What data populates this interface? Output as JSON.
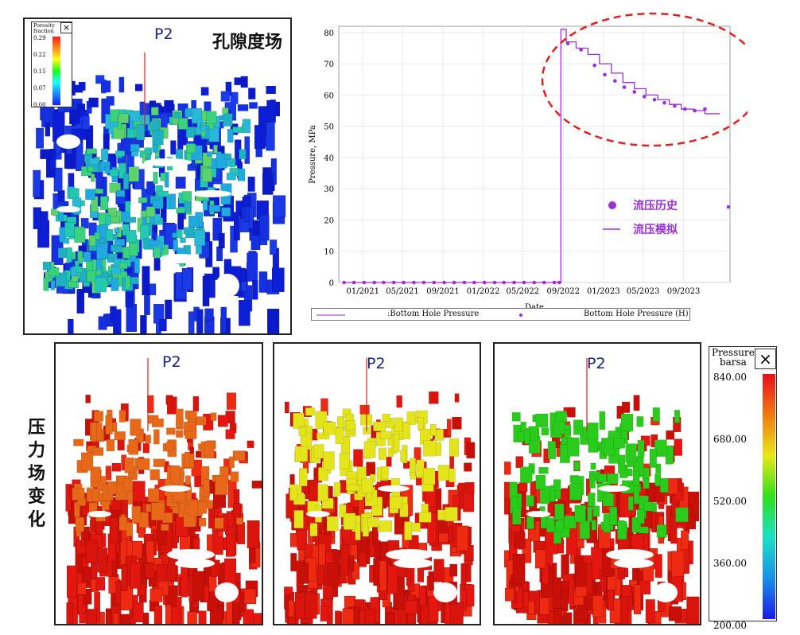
{
  "porosity_panel": {
    "well": "P2",
    "title": "孔隙度场",
    "legend_title": "Porosity\nfraction",
    "legend_ticks": [
      "0.29",
      "0.22",
      "0.15",
      "0.07",
      "0.00"
    ],
    "close_symbol": "×"
  },
  "pressure_panels": {
    "side_title": "压力场变化",
    "wells": [
      "P2",
      "P2",
      "P2"
    ],
    "block_colors": [
      "#e8681a",
      "#e3e41a",
      "#29cc1a"
    ],
    "base_color": "#e3170f"
  },
  "pressure_colorbar": {
    "title": "Pressure\nbarsa",
    "ticks": [
      "840.00",
      "680.00",
      "520.00",
      "360.00",
      "200.00"
    ],
    "close_symbol": "×"
  },
  "chart_data": {
    "type": "line",
    "xlabel": "Date",
    "ylabel": "Pressure, MPa",
    "ylim": [
      0,
      82
    ],
    "yticks": [
      0,
      10,
      20,
      30,
      40,
      50,
      60,
      70,
      80
    ],
    "xticks": [
      "01/2021",
      "05/2021",
      "09/2021",
      "01/2022",
      "05/2022",
      "09/2022",
      "01/2023",
      "05/2023",
      "09/2023"
    ],
    "xlim": [
      "2020-10-20",
      "2024-01-20"
    ],
    "grid": true,
    "color": "#9b30d9",
    "series": [
      {
        "name": ":Bottom Hole Pressure",
        "style": "step-line",
        "x": [
          "2020-11-01",
          "2022-08-25",
          "2022-08-25",
          "2022-09-10",
          "2022-10-10",
          "2022-11-15",
          "2022-12-20",
          "2023-01-25",
          "2023-03-01",
          "2023-04-05",
          "2023-05-10",
          "2023-06-15",
          "2023-07-20",
          "2023-08-25",
          "2023-10-01",
          "2023-11-05",
          "2023-12-20"
        ],
        "y": [
          0,
          0,
          81,
          77,
          75,
          73,
          70,
          67,
          64,
          62,
          60,
          58.5,
          57,
          55.5,
          55,
          54,
          54
        ]
      },
      {
        "name": "Bottom Hole Pressure (H)",
        "style": "markers",
        "x": [
          "2020-11-05",
          "2020-12-05",
          "2021-01-05",
          "2021-02-05",
          "2021-03-05",
          "2021-04-05",
          "2021-05-05",
          "2021-06-05",
          "2021-07-05",
          "2021-08-05",
          "2021-09-05",
          "2021-10-05",
          "2021-11-05",
          "2021-12-05",
          "2022-01-05",
          "2022-02-05",
          "2022-03-05",
          "2022-04-05",
          "2022-05-05",
          "2022-06-05",
          "2022-07-05",
          "2022-08-05",
          "2022-08-20",
          "2022-09-15",
          "2022-10-25",
          "2022-12-05",
          "2023-01-05",
          "2023-02-05",
          "2023-03-05",
          "2023-04-05",
          "2023-05-05",
          "2023-06-05",
          "2023-07-05",
          "2023-08-05",
          "2023-09-05",
          "2023-10-05",
          "2023-11-05"
        ],
        "y": [
          0,
          0,
          0,
          0,
          0,
          0,
          0,
          0,
          0,
          0,
          0,
          0,
          0,
          0,
          0,
          0,
          0,
          0,
          0,
          0,
          0,
          0,
          0,
          76.5,
          74.5,
          69.5,
          66.5,
          64.5,
          62.5,
          61,
          59.5,
          58.5,
          57.5,
          56.5,
          55.5,
          55,
          55.5
        ]
      }
    ],
    "annotation_legend": [
      {
        "symbol": "dot",
        "label": "流压历史"
      },
      {
        "symbol": "line",
        "label": "流压模拟"
      }
    ]
  }
}
